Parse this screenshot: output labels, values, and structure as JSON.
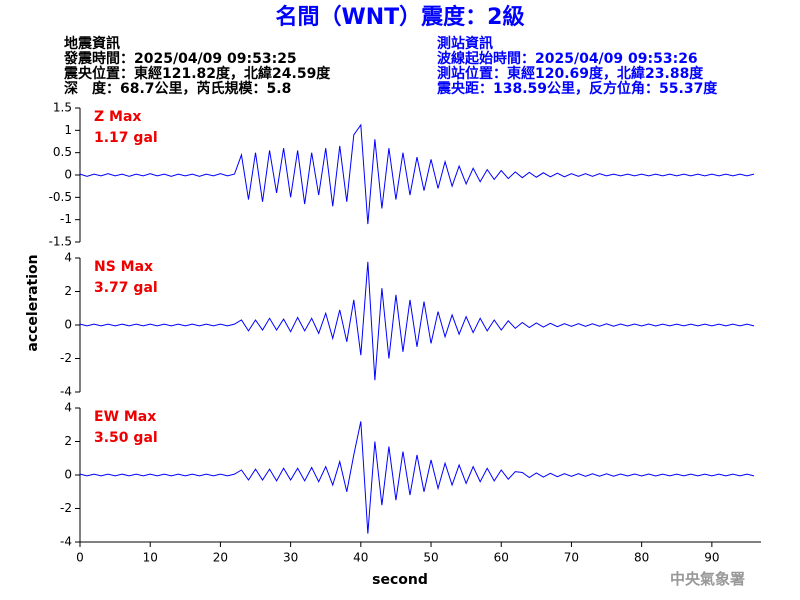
{
  "chart_data": {
    "type": "line",
    "title": "名間（WNT）震度：2級",
    "info_left": [
      "地震資訊",
      "發震時間：2025/04/09 09:53:25",
      "震央位置：東經121.82度，北緯24.59度",
      "深　度：68.7公里，芮氏規模：5.8"
    ],
    "info_right": [
      "測站資訊",
      "波線起始時間：2025/04/09 09:53:26",
      "測站位置：東經120.69度，北緯23.88度",
      "震央距：138.59公里，反方位角：55.37度"
    ],
    "x_label": "second",
    "y_label": "acceleration",
    "footer": "中央氣象署",
    "xlim": [
      0,
      97
    ],
    "xticks": [
      0,
      10,
      20,
      30,
      40,
      50,
      60,
      70,
      80,
      90
    ],
    "x": [
      0,
      1,
      2,
      3,
      4,
      5,
      6,
      7,
      8,
      9,
      10,
      11,
      12,
      13,
      14,
      15,
      16,
      17,
      18,
      19,
      20,
      21,
      22,
      23,
      24,
      25,
      26,
      27,
      28,
      29,
      30,
      31,
      32,
      33,
      34,
      35,
      36,
      37,
      38,
      39,
      40,
      41,
      42,
      43,
      44,
      45,
      46,
      47,
      48,
      49,
      50,
      51,
      52,
      53,
      54,
      55,
      56,
      57,
      58,
      59,
      60,
      61,
      62,
      63,
      64,
      65,
      66,
      67,
      68,
      69,
      70,
      71,
      72,
      73,
      74,
      75,
      76,
      77,
      78,
      79,
      80,
      81,
      82,
      83,
      84,
      85,
      86,
      87,
      88,
      89,
      90,
      91,
      92,
      93,
      94,
      95,
      96
    ],
    "series": [
      {
        "name": "Z Max",
        "max_label": "1.17 gal",
        "color": "#0000ff",
        "ylim": [
          -1.5,
          1.5
        ],
        "yticks": [
          -1.5,
          -1,
          -0.5,
          0,
          0.5,
          1,
          1.5
        ],
        "values": [
          0.02,
          -0.03,
          0.02,
          -0.02,
          0.03,
          -0.02,
          0.02,
          -0.03,
          0.02,
          -0.02,
          0.03,
          -0.02,
          0.02,
          -0.03,
          0.02,
          -0.02,
          0.02,
          -0.03,
          0.02,
          -0.02,
          0.03,
          -0.02,
          0.02,
          0.45,
          -0.55,
          0.5,
          -0.6,
          0.55,
          -0.4,
          0.6,
          -0.5,
          0.55,
          -0.65,
          0.5,
          -0.45,
          0.6,
          -0.7,
          0.65,
          -0.6,
          0.9,
          1.12,
          -1.1,
          0.8,
          -0.75,
          0.6,
          -0.55,
          0.5,
          -0.45,
          0.4,
          -0.35,
          0.35,
          -0.3,
          0.3,
          -0.25,
          0.2,
          -0.2,
          0.15,
          -0.15,
          0.12,
          -0.1,
          0.1,
          -0.08,
          0.07,
          -0.06,
          0.06,
          -0.05,
          0.05,
          -0.04,
          0.04,
          -0.04,
          0.03,
          -0.03,
          0.03,
          -0.03,
          0.03,
          -0.02,
          0.02,
          -0.02,
          0.02,
          -0.02,
          0.02,
          -0.02,
          0.02,
          -0.02,
          0.02,
          -0.02,
          0.02,
          -0.02,
          0.02,
          -0.02,
          0.02,
          -0.02,
          0.02,
          -0.02,
          0.02,
          -0.02,
          0.02
        ]
      },
      {
        "name": "NS Max",
        "max_label": "3.77 gal",
        "color": "#0000ff",
        "ylim": [
          -4,
          4
        ],
        "yticks": [
          -4,
          -2,
          0,
          2,
          4
        ],
        "values": [
          0.05,
          -0.05,
          0.05,
          -0.05,
          0.05,
          -0.05,
          0.05,
          -0.05,
          0.05,
          -0.05,
          0.05,
          -0.05,
          0.05,
          -0.05,
          0.05,
          -0.05,
          0.05,
          -0.05,
          0.05,
          -0.05,
          0.05,
          -0.05,
          0.05,
          0.3,
          -0.35,
          0.3,
          -0.3,
          0.4,
          -0.3,
          0.35,
          -0.4,
          0.45,
          -0.35,
          0.4,
          -0.5,
          0.7,
          -0.8,
          0.9,
          -1.0,
          1.5,
          -1.8,
          3.77,
          -3.3,
          2.2,
          -2.0,
          1.8,
          -1.6,
          1.5,
          -1.3,
          1.4,
          -1.1,
          0.8,
          -0.7,
          0.6,
          -0.55,
          0.5,
          -0.45,
          0.4,
          -0.35,
          0.3,
          -0.3,
          0.25,
          -0.2,
          0.15,
          -0.15,
          0.12,
          -0.12,
          0.1,
          -0.1,
          0.08,
          -0.08,
          0.08,
          -0.08,
          0.07,
          -0.07,
          0.07,
          -0.07,
          0.06,
          -0.06,
          0.06,
          -0.06,
          0.06,
          -0.06,
          0.05,
          -0.05,
          0.05,
          -0.05,
          0.05,
          -0.05,
          0.05,
          -0.05,
          0.05,
          -0.05,
          0.05,
          -0.05,
          0.05,
          -0.05
        ]
      },
      {
        "name": "EW Max",
        "max_label": "3.50 gal",
        "color": "#0000ff",
        "ylim": [
          -4,
          4
        ],
        "yticks": [
          -4,
          -2,
          0,
          2,
          4
        ],
        "values": [
          0.05,
          -0.05,
          0.05,
          -0.05,
          0.05,
          -0.05,
          0.05,
          -0.05,
          0.05,
          -0.05,
          0.05,
          -0.05,
          0.05,
          -0.05,
          0.05,
          -0.05,
          0.05,
          -0.05,
          0.05,
          -0.05,
          0.05,
          -0.05,
          0.05,
          0.3,
          -0.3,
          0.35,
          -0.3,
          0.35,
          -0.35,
          0.4,
          -0.3,
          0.4,
          -0.35,
          0.45,
          -0.4,
          0.5,
          -0.6,
          0.8,
          -1.0,
          1.2,
          3.2,
          -3.5,
          2.0,
          -1.8,
          1.7,
          -1.5,
          1.4,
          -1.2,
          1.2,
          -1.0,
          0.9,
          -0.8,
          0.7,
          -0.6,
          0.6,
          -0.5,
          0.5,
          -0.4,
          0.4,
          -0.35,
          0.3,
          -0.25,
          0.2,
          0.15,
          -0.15,
          0.12,
          -0.12,
          0.1,
          -0.1,
          0.08,
          -0.08,
          0.08,
          -0.08,
          0.07,
          -0.07,
          0.07,
          -0.07,
          0.06,
          -0.06,
          0.06,
          -0.06,
          0.06,
          -0.06,
          0.05,
          -0.05,
          0.05,
          -0.05,
          0.05,
          -0.05,
          0.05,
          -0.05,
          0.05,
          -0.05,
          0.05,
          -0.05,
          0.05,
          -0.05
        ]
      }
    ]
  }
}
